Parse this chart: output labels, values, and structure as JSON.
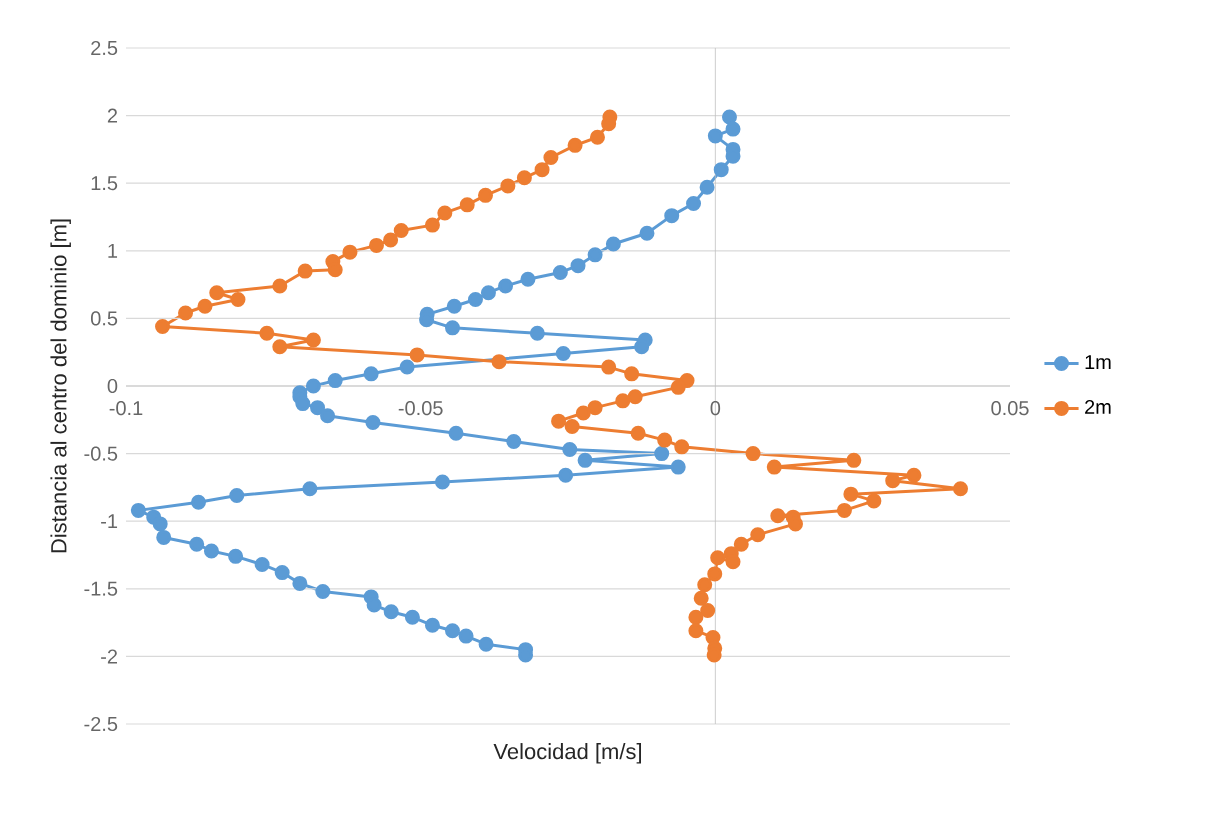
{
  "chart_data": {
    "type": "line",
    "xlabel": "Velocidad [m/s]",
    "ylabel": "Distancia al centro del dominio [m]",
    "xlim": [
      -0.1,
      0.05
    ],
    "xticks": [
      -0.1,
      -0.05,
      0,
      0.05
    ],
    "ylim": [
      -2.5,
      2.5
    ],
    "yticks": [
      -2.5,
      -2,
      -1.5,
      -1,
      -0.5,
      0,
      0.5,
      1,
      1.5,
      2,
      2.5
    ],
    "grid": "y",
    "legend": "right",
    "marker": "circle",
    "line_style": "solid",
    "series": [
      {
        "name": "1m",
        "color": "#5b9bd5",
        "x": [
          0.0024,
          0.003,
          0.0,
          0.003,
          0.003,
          0.001,
          -0.0014,
          -0.0037,
          -0.0074,
          -0.0116,
          -0.0173,
          -0.0204,
          -0.0233,
          -0.0263,
          -0.0318,
          -0.0356,
          -0.0385,
          -0.0407,
          -0.0443,
          -0.0489,
          -0.049,
          -0.0446,
          -0.0302,
          -0.0119,
          -0.0125,
          -0.0258,
          -0.0523,
          -0.0584,
          -0.0645,
          -0.0682,
          -0.0705,
          -0.0705,
          -0.07,
          -0.0675,
          -0.0658,
          -0.0581,
          -0.044,
          -0.0342,
          -0.0247,
          -0.0091,
          -0.0221,
          -0.0063,
          -0.0254,
          -0.0463,
          -0.0688,
          -0.0812,
          -0.0877,
          -0.0979,
          -0.0953,
          -0.0942,
          -0.0936,
          -0.088,
          -0.0855,
          -0.0814,
          -0.0769,
          -0.0735,
          -0.0705,
          -0.0666,
          -0.0584,
          -0.0579,
          -0.055,
          -0.0514,
          -0.048,
          -0.0446,
          -0.0423,
          -0.0389,
          -0.0322,
          -0.0322
        ],
        "values": [
          1.99,
          1.9,
          1.85,
          1.75,
          1.7,
          1.6,
          1.47,
          1.35,
          1.26,
          1.13,
          1.05,
          0.97,
          0.89,
          0.84,
          0.79,
          0.74,
          0.69,
          0.64,
          0.59,
          0.53,
          0.49,
          0.43,
          0.39,
          0.34,
          0.29,
          0.24,
          0.14,
          0.09,
          0.04,
          0.0,
          -0.05,
          -0.08,
          -0.13,
          -0.16,
          -0.22,
          -0.27,
          -0.35,
          -0.41,
          -0.47,
          -0.5,
          -0.55,
          -0.6,
          -0.66,
          -0.71,
          -0.76,
          -0.81,
          -0.86,
          -0.92,
          -0.97,
          -1.02,
          -1.12,
          -1.17,
          -1.22,
          -1.26,
          -1.32,
          -1.38,
          -1.46,
          -1.52,
          -1.56,
          -1.62,
          -1.67,
          -1.71,
          -1.77,
          -1.81,
          -1.85,
          -1.91,
          -1.95,
          -1.99
        ]
      },
      {
        "name": "2m",
        "color": "#ed7d31",
        "x": [
          -0.0179,
          -0.0181,
          -0.02,
          -0.0238,
          -0.0279,
          -0.0294,
          -0.0324,
          -0.0352,
          -0.039,
          -0.0421,
          -0.0459,
          -0.048,
          -0.0533,
          -0.0551,
          -0.0575,
          -0.062,
          -0.0649,
          -0.0645,
          -0.0696,
          -0.0739,
          -0.0846,
          -0.081,
          -0.0866,
          -0.0899,
          -0.0938,
          -0.0761,
          -0.0682,
          -0.0739,
          -0.0506,
          -0.0367,
          -0.0181,
          -0.0142,
          -0.0048,
          -0.0063,
          -0.0136,
          -0.0157,
          -0.0204,
          -0.0224,
          -0.0266,
          -0.0243,
          -0.0131,
          -0.0086,
          -0.0057,
          0.0064,
          0.0235,
          0.01,
          0.0337,
          0.0301,
          0.0416,
          0.023,
          0.0269,
          0.0219,
          0.0106,
          0.0132,
          0.0136,
          0.0072,
          0.0044,
          0.0027,
          0.003,
          0.0004,
          -0.0001,
          -0.0018,
          -0.0024,
          -0.0013,
          -0.0033,
          -0.0033,
          -0.0004,
          -0.0001,
          -0.0002
        ],
        "values": [
          1.99,
          1.94,
          1.84,
          1.78,
          1.69,
          1.6,
          1.54,
          1.48,
          1.41,
          1.34,
          1.28,
          1.19,
          1.15,
          1.08,
          1.04,
          0.99,
          0.92,
          0.86,
          0.85,
          0.74,
          0.69,
          0.64,
          0.59,
          0.54,
          0.44,
          0.39,
          0.34,
          0.29,
          0.23,
          0.18,
          0.14,
          0.09,
          0.04,
          -0.01,
          -0.08,
          -0.11,
          -0.16,
          -0.2,
          -0.26,
          -0.3,
          -0.35,
          -0.4,
          -0.45,
          -0.5,
          -0.55,
          -0.6,
          -0.66,
          -0.7,
          -0.76,
          -0.8,
          -0.85,
          -0.92,
          -0.96,
          -0.97,
          -1.02,
          -1.1,
          -1.17,
          -1.24,
          -1.3,
          -1.27,
          -1.39,
          -1.47,
          -1.57,
          -1.66,
          -1.71,
          -1.81,
          -1.86,
          -1.94,
          -1.99
        ]
      }
    ]
  }
}
